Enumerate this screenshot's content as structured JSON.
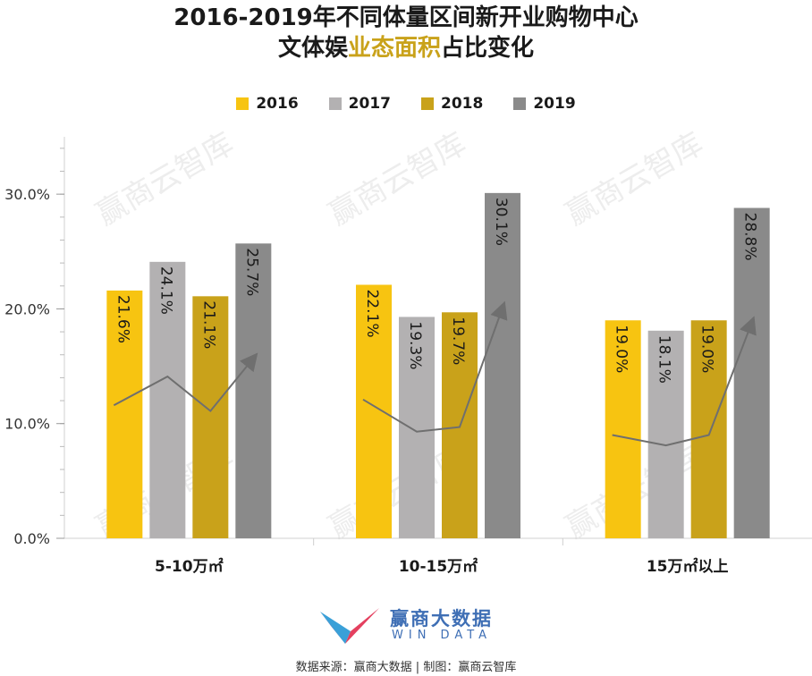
{
  "title": {
    "line1": "2016-2019年不同体量区间新开业购物中心",
    "line2_prefix": "文体娱",
    "line2_highlight": "业态面积",
    "line2_suffix": "占比变化"
  },
  "colors": {
    "2016": "#f7c411",
    "2017": "#b3b1b2",
    "2018": "#c9a21a",
    "2019": "#8a8a8a",
    "highlight": "#c9a21a",
    "trend": "#6f6f6f"
  },
  "chart_data": {
    "type": "bar",
    "categories": [
      "5-10万㎡",
      "10-15万㎡",
      "15万㎡以上"
    ],
    "series": [
      {
        "name": "2016",
        "values": [
          21.6,
          22.1,
          19.0
        ]
      },
      {
        "name": "2017",
        "values": [
          24.1,
          19.3,
          18.1
        ]
      },
      {
        "name": "2018",
        "values": [
          21.1,
          19.7,
          19.0
        ]
      },
      {
        "name": "2019",
        "values": [
          25.7,
          30.1,
          28.8
        ]
      }
    ],
    "data_labels": [
      [
        "21.6%",
        "24.1%",
        "21.1%",
        "25.7%"
      ],
      [
        "22.1%",
        "19.3%",
        "19.7%",
        "30.1%"
      ],
      [
        "19.0%",
        "18.1%",
        "19.0%",
        "28.8%"
      ]
    ],
    "yticks": [
      0,
      10,
      20,
      30
    ],
    "ytick_labels": [
      "0.0%",
      "10.0%",
      "20.0%",
      "30.0%"
    ],
    "ylim": [
      0,
      35
    ],
    "legend_position": "top-center",
    "trend_arrows": true
  },
  "watermark": "赢商云智库",
  "logo": {
    "name": "赢商大数据",
    "sub": "WIN DATA"
  },
  "footer": "数据来源：赢商大数据 | 制图：赢商云智库"
}
